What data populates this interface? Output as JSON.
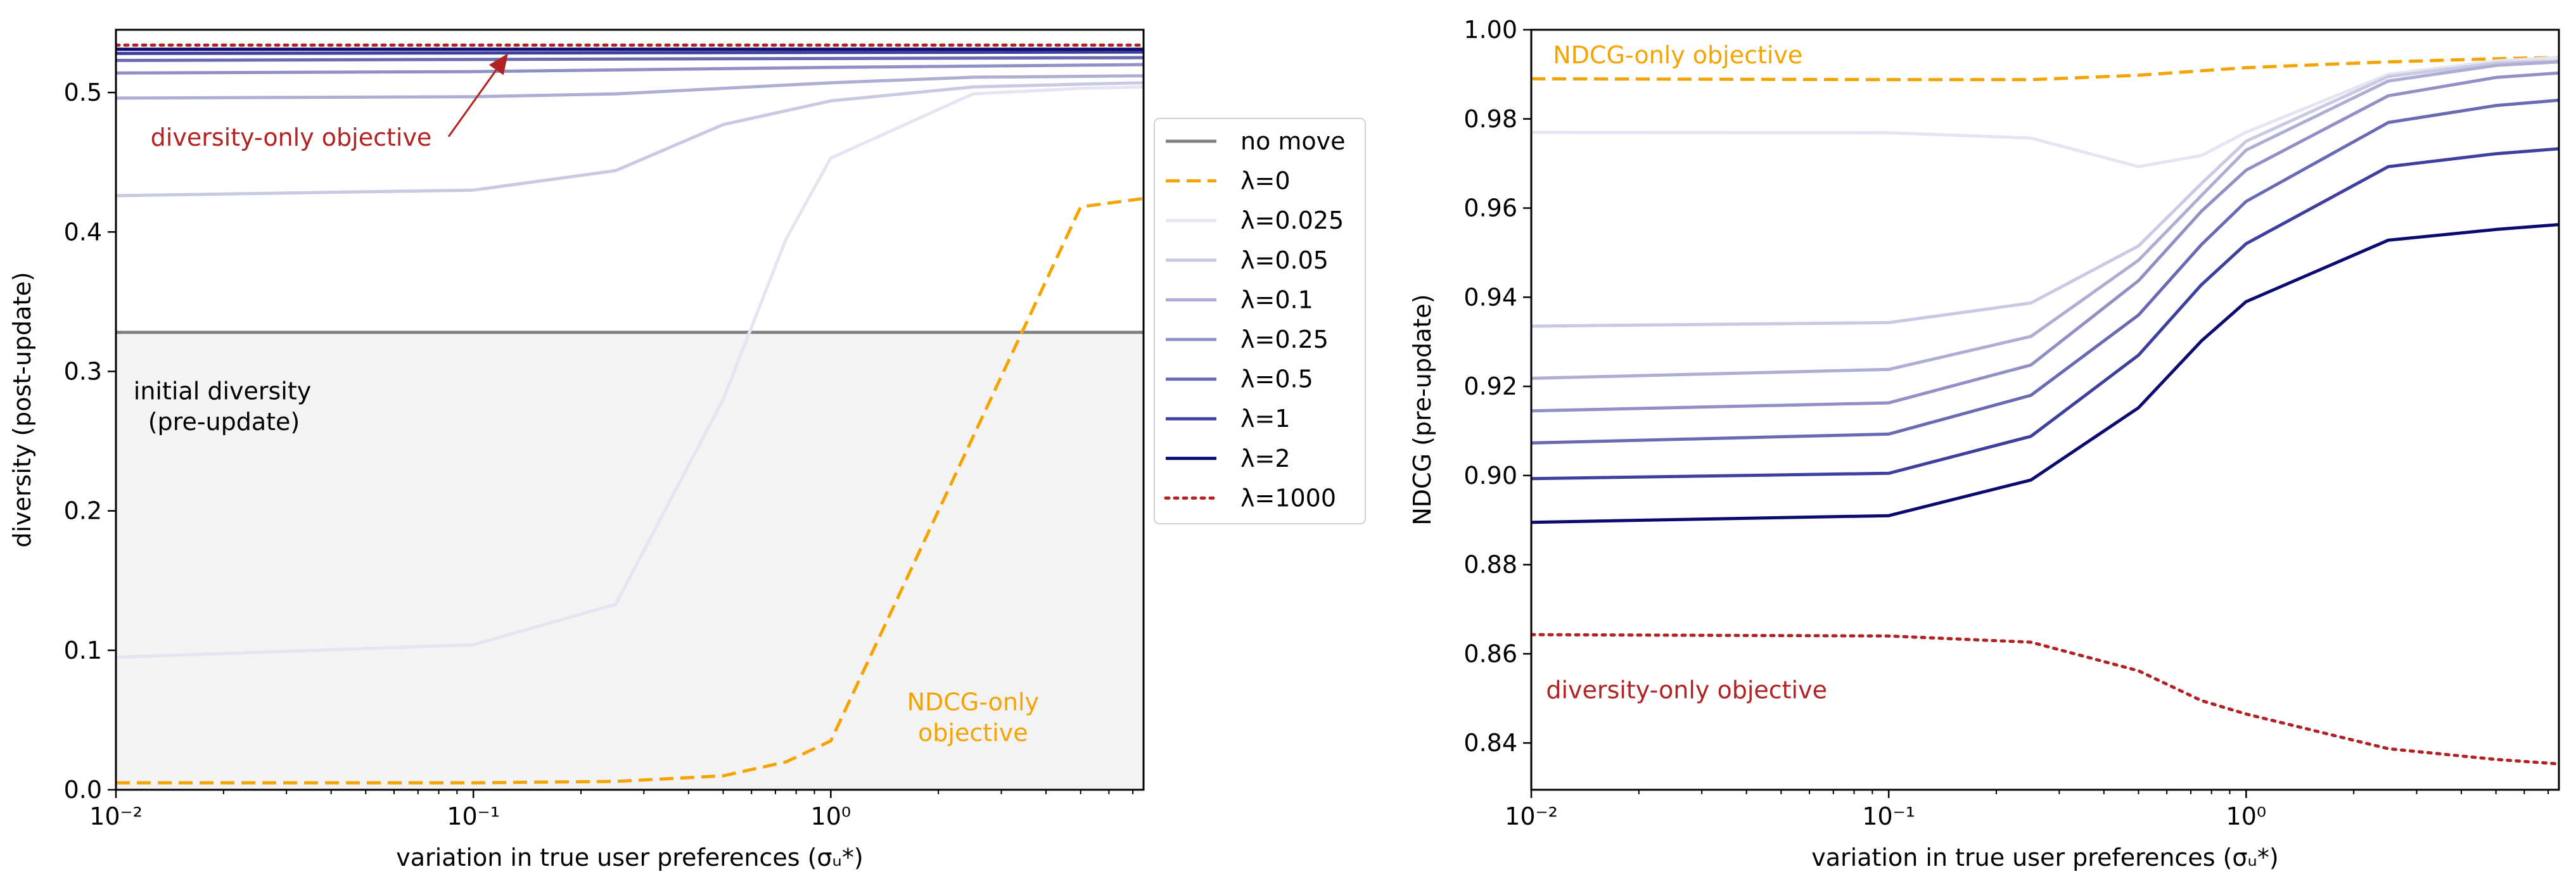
{
  "chart_data": [
    {
      "type": "line",
      "xscale": "log",
      "xlim": [
        0.01,
        7.5
      ],
      "ylim": [
        0,
        0.545
      ],
      "x_ticks": [
        0.01,
        0.1,
        1
      ],
      "x_tick_labels": [
        "10⁻²",
        "10⁻¹",
        "10⁰"
      ],
      "y_ticks": [
        0,
        0.1,
        0.2,
        0.3,
        0.4,
        0.5
      ],
      "y_tick_labels": [
        "0.0",
        "0.1",
        "0.2",
        "0.3",
        "0.4",
        "0.5"
      ],
      "xlabel": "variation in true user preferences (σᵤ*)",
      "ylabel": "diversity (post-update)",
      "shaded_region": {
        "y_from": 0,
        "y_to": 0.328,
        "color": "#f3f3f3"
      },
      "annotations": [
        {
          "text": "diversity-only objective",
          "color": "#b22222",
          "x": 0.0125,
          "y": 0.462,
          "arrow_to": [
            0.125,
            0.528
          ]
        },
        {
          "text": "initial diversity",
          "color": "#000000",
          "x": 0.0112,
          "y": 0.28
        },
        {
          "text": "(pre-update)",
          "color": "#000000",
          "x": 0.0123,
          "y": 0.258
        },
        {
          "text": "NDCG-only",
          "color": "#f5a300",
          "x": 2.5,
          "y": 0.057,
          "anchor": "middle"
        },
        {
          "text": "objective",
          "color": "#f5a300",
          "x": 2.5,
          "y": 0.035,
          "anchor": "middle"
        }
      ],
      "legend": {
        "placement": "outside-right",
        "entries": [
          "no move",
          "λ=0",
          "λ=0.025",
          "λ=0.05",
          "λ=0.1",
          "λ=0.25",
          "λ=0.5",
          "λ=1",
          "λ=2",
          "λ=1000"
        ]
      },
      "series": [
        {
          "name": "no move",
          "color": "#808080",
          "dash": "solid",
          "x": [
            0.01,
            7.5
          ],
          "y": [
            0.328,
            0.328
          ]
        },
        {
          "name": "λ=0",
          "color": "#f5a300",
          "dash": "dashed",
          "x": [
            0.01,
            0.1,
            0.25,
            0.5,
            0.75,
            1,
            5,
            7.5
          ],
          "y": [
            0.005,
            0.005,
            0.006,
            0.01,
            0.02,
            0.035,
            0.418,
            0.424
          ]
        },
        {
          "name": "λ=0.025",
          "color": "#e4e4f2",
          "dash": "solid",
          "x": [
            0.01,
            0.1,
            0.25,
            0.5,
            0.75,
            1,
            2.5,
            5,
            7.5
          ],
          "y": [
            0.095,
            0.104,
            0.133,
            0.28,
            0.395,
            0.453,
            0.499,
            0.503,
            0.504
          ]
        },
        {
          "name": "λ=0.05",
          "color": "#c9c9e3",
          "dash": "solid",
          "x": [
            0.01,
            0.1,
            0.25,
            0.5,
            1,
            2.5,
            5,
            7.5
          ],
          "y": [
            0.426,
            0.43,
            0.444,
            0.477,
            0.494,
            0.504,
            0.506,
            0.507
          ]
        },
        {
          "name": "λ=0.1",
          "color": "#aeaed4",
          "dash": "solid",
          "x": [
            0.01,
            0.1,
            0.25,
            1,
            2.5,
            7.5
          ],
          "y": [
            0.496,
            0.497,
            0.499,
            0.507,
            0.511,
            0.512
          ]
        },
        {
          "name": "λ=0.25",
          "color": "#9090c6",
          "dash": "solid",
          "x": [
            0.01,
            0.1,
            1,
            7.5
          ],
          "y": [
            0.514,
            0.515,
            0.518,
            0.52
          ]
        },
        {
          "name": "λ=0.5",
          "color": "#6a6ab4",
          "dash": "solid",
          "x": [
            0.01,
            7.5
          ],
          "y": [
            0.523,
            0.525
          ]
        },
        {
          "name": "λ=1",
          "color": "#3f3fa0",
          "dash": "solid",
          "x": [
            0.01,
            7.5
          ],
          "y": [
            0.528,
            0.529
          ]
        },
        {
          "name": "λ=2",
          "color": "#0a0a70",
          "dash": "solid",
          "x": [
            0.01,
            7.5
          ],
          "y": [
            0.531,
            0.531
          ]
        },
        {
          "name": "λ=1000",
          "color": "#b22222",
          "dash": "dotted",
          "x": [
            0.01,
            7.5
          ],
          "y": [
            0.534,
            0.534
          ]
        }
      ]
    },
    {
      "type": "line",
      "xscale": "log",
      "xlim": [
        0.01,
        7.5
      ],
      "ylim": [
        0.8295,
        1.0
      ],
      "x_ticks": [
        0.01,
        0.1,
        1
      ],
      "x_tick_labels": [
        "10⁻²",
        "10⁻¹",
        "10⁰"
      ],
      "y_ticks": [
        0.84,
        0.86,
        0.88,
        0.9,
        0.92,
        0.94,
        0.96,
        0.98,
        1.0
      ],
      "y_tick_labels": [
        "0.84",
        "0.86",
        "0.88",
        "0.90",
        "0.92",
        "0.94",
        "0.96",
        "0.98",
        "1.00"
      ],
      "xlabel": "variation in true user preferences (σᵤ*)",
      "ylabel": "NDCG (pre-update)",
      "annotations": [
        {
          "text": "NDCG-only objective",
          "color": "#f5a300",
          "x": 0.0115,
          "y": 0.9925
        },
        {
          "text": "diversity-only objective",
          "color": "#b22222",
          "x": 0.011,
          "y": 0.85
        }
      ],
      "series": [
        {
          "name": "λ=0",
          "color": "#f5a300",
          "dash": "dashed",
          "x": [
            0.01,
            0.1,
            0.25,
            0.5,
            1,
            2.5,
            5,
            7.5
          ],
          "y": [
            0.989,
            0.9888,
            0.9888,
            0.9898,
            0.9915,
            0.9928,
            0.9935,
            0.9938
          ]
        },
        {
          "name": "λ=0.025",
          "color": "#e4e4f2",
          "dash": "solid",
          "x": [
            0.01,
            0.1,
            0.25,
            0.5,
            0.75,
            1,
            2.5,
            5,
            7.5
          ],
          "y": [
            0.977,
            0.9769,
            0.9757,
            0.9693,
            0.9718,
            0.977,
            0.99,
            0.993,
            0.9938
          ]
        },
        {
          "name": "λ=0.05",
          "color": "#c9c9e3",
          "dash": "solid",
          "x": [
            0.01,
            0.1,
            0.25,
            0.5,
            0.75,
            1,
            2.5,
            5,
            7.5
          ],
          "y": [
            0.9335,
            0.9343,
            0.9387,
            0.9515,
            0.9655,
            0.975,
            0.9895,
            0.9925,
            0.993
          ]
        },
        {
          "name": "λ=0.1",
          "color": "#aeaed4",
          "dash": "solid",
          "x": [
            0.01,
            0.1,
            0.25,
            0.5,
            0.75,
            1,
            2.5,
            5,
            7.5
          ],
          "y": [
            0.9218,
            0.9238,
            0.9312,
            0.9483,
            0.9628,
            0.973,
            0.9885,
            0.992,
            0.9928
          ]
        },
        {
          "name": "λ=0.25",
          "color": "#9090c6",
          "dash": "solid",
          "x": [
            0.01,
            0.1,
            0.25,
            0.5,
            0.75,
            1,
            2.5,
            5,
            7.5
          ],
          "y": [
            0.9145,
            0.9163,
            0.9248,
            0.9437,
            0.9593,
            0.9685,
            0.9852,
            0.9893,
            0.9903
          ]
        },
        {
          "name": "λ=0.5",
          "color": "#6a6ab4",
          "dash": "solid",
          "x": [
            0.01,
            0.1,
            0.25,
            0.5,
            0.75,
            1,
            2.5,
            5,
            7.5
          ],
          "y": [
            0.9073,
            0.9093,
            0.918,
            0.936,
            0.9518,
            0.9615,
            0.9792,
            0.983,
            0.9842
          ]
        },
        {
          "name": "λ=1",
          "color": "#3f3fa0",
          "dash": "solid",
          "x": [
            0.01,
            0.1,
            0.25,
            0.5,
            0.75,
            1,
            2.5,
            5,
            7.5
          ],
          "y": [
            0.8993,
            0.9005,
            0.9088,
            0.927,
            0.9428,
            0.952,
            0.9693,
            0.9722,
            0.9733
          ]
        },
        {
          "name": "λ=2",
          "color": "#0a0a70",
          "dash": "solid",
          "x": [
            0.01,
            0.1,
            0.25,
            0.5,
            0.75,
            1,
            2.5,
            5,
            7.5
          ],
          "y": [
            0.8895,
            0.891,
            0.899,
            0.9152,
            0.9302,
            0.939,
            0.9528,
            0.9552,
            0.9563
          ]
        },
        {
          "name": "λ=1000",
          "color": "#b22222",
          "dash": "dotted",
          "x": [
            0.01,
            0.1,
            0.25,
            0.5,
            0.75,
            1,
            2.5,
            5,
            7.5
          ],
          "y": [
            0.8643,
            0.864,
            0.8626,
            0.8562,
            0.8495,
            0.8465,
            0.8387,
            0.8363,
            0.8353
          ]
        }
      ]
    }
  ]
}
